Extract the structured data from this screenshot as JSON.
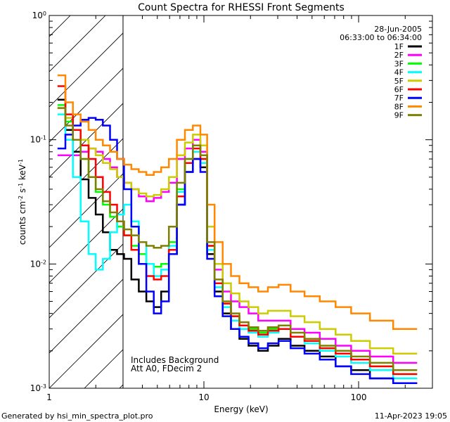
{
  "chart_data": {
    "type": "line",
    "title": "Count Spectra for RHESSI Front Segments",
    "xlabel": "Energy (keV)",
    "ylabel": "counts cm-2 s-1 keV-1",
    "xscale": "log",
    "yscale": "log",
    "xlim": [
      1,
      300
    ],
    "ylim": [
      0.001,
      1
    ],
    "x_ticks": [
      {
        "value": 1,
        "label": "1"
      },
      {
        "value": 10,
        "label": "10"
      },
      {
        "value": 100,
        "label": "100"
      }
    ],
    "y_ticks": [
      {
        "value": 0.001,
        "label": "10",
        "exp": "-3"
      },
      {
        "value": 0.01,
        "label": "10",
        "exp": "-2"
      },
      {
        "value": 0.1,
        "label": "10",
        "exp": "-1"
      },
      {
        "value": 1,
        "label": "10",
        "exp": "0"
      }
    ],
    "hatched_region": [
      1,
      3
    ],
    "date": "28-Jun-2005",
    "time_range": "06:33:00 to 06:34:00",
    "annotations": [
      "Includes Background",
      "Att A0, FDecim 2"
    ],
    "footer_left": "Generated by hsi_min_spectra_plot.pro",
    "footer_right": "11-Apr-2023 19:05",
    "series": [
      {
        "name": "1F",
        "color": "#000000",
        "values": [
          0.21,
          0.12,
          0.08,
          0.048,
          0.034,
          0.025,
          0.018,
          0.013,
          0.012,
          0.011,
          0.0075,
          0.006,
          0.005,
          0.0045,
          0.006,
          0.012,
          0.03,
          0.055,
          0.07,
          0.06,
          0.012,
          0.006,
          0.004,
          0.003,
          0.0025,
          0.0022,
          0.002,
          0.0022,
          0.0025,
          0.0022,
          0.002,
          0.0018,
          0.0015,
          0.0014,
          0.0012,
          0.0011
        ]
      },
      {
        "name": "2F",
        "color": "#ff00ff",
        "values": [
          0.075,
          0.075,
          0.075,
          0.08,
          0.085,
          0.08,
          0.07,
          0.06,
          0.05,
          0.045,
          0.04,
          0.035,
          0.032,
          0.034,
          0.038,
          0.045,
          0.07,
          0.085,
          0.1,
          0.08,
          0.02,
          0.009,
          0.006,
          0.005,
          0.0045,
          0.004,
          0.0035,
          0.0035,
          0.0035,
          0.003,
          0.0028,
          0.0025,
          0.0022,
          0.002,
          0.0018,
          0.0016
        ]
      },
      {
        "name": "3F",
        "color": "#00ff00",
        "values": [
          0.19,
          0.14,
          0.1,
          0.07,
          0.05,
          0.038,
          0.03,
          0.024,
          0.02,
          0.017,
          0.014,
          0.012,
          0.01,
          0.0095,
          0.01,
          0.015,
          0.04,
          0.07,
          0.09,
          0.07,
          0.014,
          0.007,
          0.0048,
          0.0038,
          0.0032,
          0.003,
          0.0028,
          0.003,
          0.003,
          0.0026,
          0.0024,
          0.0021,
          0.0019,
          0.0017,
          0.0015,
          0.0013
        ]
      },
      {
        "name": "4F",
        "color": "#00ffff",
        "values": [
          0.16,
          0.1,
          0.05,
          0.022,
          0.012,
          0.009,
          0.011,
          0.018,
          0.025,
          0.03,
          0.022,
          0.015,
          0.01,
          0.008,
          0.009,
          0.014,
          0.038,
          0.065,
          0.08,
          0.065,
          0.013,
          0.0065,
          0.0045,
          0.0035,
          0.003,
          0.0028,
          0.0026,
          0.0028,
          0.003,
          0.0026,
          0.0023,
          0.002,
          0.0018,
          0.0016,
          0.0014,
          0.0012
        ]
      },
      {
        "name": "5F",
        "color": "#cccc00",
        "values": [
          0.18,
          0.15,
          0.12,
          0.1,
          0.085,
          0.075,
          0.065,
          0.058,
          0.05,
          0.045,
          0.04,
          0.037,
          0.035,
          0.036,
          0.04,
          0.05,
          0.075,
          0.095,
          0.11,
          0.09,
          0.02,
          0.01,
          0.007,
          0.0058,
          0.005,
          0.0045,
          0.004,
          0.0042,
          0.0042,
          0.0038,
          0.0034,
          0.003,
          0.0027,
          0.0024,
          0.0021,
          0.0019
        ]
      },
      {
        "name": "6F",
        "color": "#ff0000",
        "values": [
          0.27,
          0.16,
          0.12,
          0.09,
          0.07,
          0.05,
          0.038,
          0.03,
          0.022,
          0.017,
          0.013,
          0.01,
          0.008,
          0.0075,
          0.008,
          0.013,
          0.035,
          0.065,
          0.085,
          0.07,
          0.014,
          0.007,
          0.0048,
          0.0038,
          0.0032,
          0.0029,
          0.0027,
          0.0029,
          0.003,
          0.0026,
          0.0024,
          0.0021,
          0.0019,
          0.0017,
          0.0015,
          0.0013
        ]
      },
      {
        "name": "7F",
        "color": "#0000ff",
        "values": [
          0.085,
          0.11,
          0.13,
          0.145,
          0.15,
          0.145,
          0.13,
          0.1,
          0.07,
          0.04,
          0.02,
          0.01,
          0.006,
          0.004,
          0.005,
          0.012,
          0.03,
          0.055,
          0.07,
          0.055,
          0.011,
          0.0055,
          0.0038,
          0.003,
          0.0026,
          0.0023,
          0.0021,
          0.0023,
          0.0024,
          0.0021,
          0.0019,
          0.0017,
          0.0015,
          0.0013,
          0.0012,
          0.0011
        ]
      },
      {
        "name": "8F",
        "color": "#ff8800",
        "values": [
          0.33,
          0.2,
          0.16,
          0.14,
          0.12,
          0.1,
          0.09,
          0.08,
          0.07,
          0.063,
          0.058,
          0.055,
          0.052,
          0.055,
          0.06,
          0.07,
          0.1,
          0.12,
          0.13,
          0.11,
          0.03,
          0.015,
          0.01,
          0.008,
          0.007,
          0.0065,
          0.006,
          0.0065,
          0.0068,
          0.006,
          0.0055,
          0.005,
          0.0045,
          0.004,
          0.0035,
          0.003
        ]
      },
      {
        "name": "9F",
        "color": "#808000",
        "values": [
          0.18,
          0.13,
          0.1,
          0.07,
          0.05,
          0.04,
          0.032,
          0.026,
          0.022,
          0.019,
          0.017,
          0.015,
          0.014,
          0.0135,
          0.014,
          0.02,
          0.045,
          0.07,
          0.09,
          0.075,
          0.015,
          0.0075,
          0.005,
          0.004,
          0.0034,
          0.0031,
          0.0029,
          0.0031,
          0.0032,
          0.0028,
          0.0025,
          0.0022,
          0.002,
          0.0018,
          0.0016,
          0.0014
        ]
      }
    ],
    "x": [
      1.2,
      1.35,
      1.5,
      1.7,
      1.9,
      2.1,
      2.35,
      2.6,
      2.9,
      3.2,
      3.6,
      4.0,
      4.5,
      5.0,
      5.6,
      6.3,
      7.1,
      8.0,
      9.0,
      10.0,
      11.0,
      12.5,
      14.0,
      16.0,
      18.0,
      21.0,
      24.0,
      28.0,
      33.0,
      40.0,
      50.0,
      63.0,
      80.0,
      100.0,
      140.0,
      200.0
    ]
  }
}
